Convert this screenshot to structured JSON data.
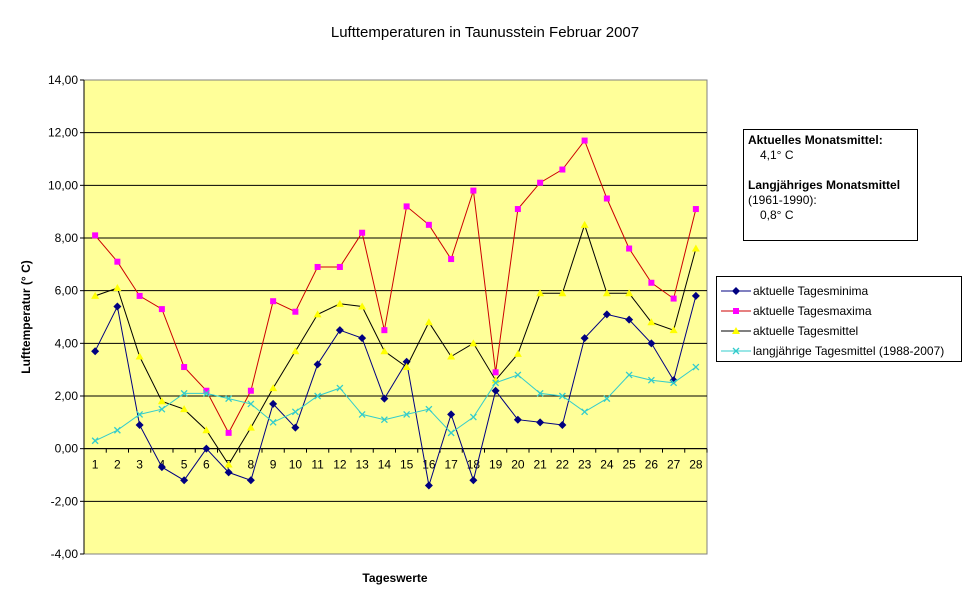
{
  "chart_data": {
    "type": "line",
    "title": "Lufttemperaturen in Taunusstein  Februar 2007",
    "xlabel": "Tageswerte",
    "ylabel": "Lufttemperatur (° C)",
    "ylim": [
      -4,
      14
    ],
    "ytick_step": 2,
    "ytick_labels": [
      "-4,00",
      "-2,00",
      "0,00",
      "2,00",
      "4,00",
      "6,00",
      "8,00",
      "10,00",
      "12,00",
      "14,00"
    ],
    "x": [
      1,
      2,
      3,
      4,
      5,
      6,
      7,
      8,
      9,
      10,
      11,
      12,
      13,
      14,
      15,
      16,
      17,
      18,
      19,
      20,
      21,
      22,
      23,
      24,
      25,
      26,
      27,
      28
    ],
    "x_tick_labels": [
      "1",
      "2",
      "3",
      "4",
      "5",
      "6",
      "7",
      "8",
      "9",
      "10",
      "11",
      "12",
      "13",
      "14",
      "15",
      "16",
      "17",
      "18",
      "19",
      "20",
      "21",
      "22",
      "23",
      "24",
      "25",
      "26",
      "27",
      "28"
    ],
    "grid": true,
    "plot_background": "#ffff99",
    "legend_placement": "right",
    "series": [
      {
        "name": "aktuelle Tagesminima",
        "color": "#000080",
        "marker": "diamond",
        "values": [
          3.7,
          5.4,
          0.9,
          -0.7,
          -1.2,
          0.0,
          -0.9,
          -1.2,
          1.7,
          0.8,
          3.2,
          4.5,
          4.2,
          1.9,
          3.3,
          -1.4,
          1.3,
          -1.2,
          2.2,
          1.1,
          1.0,
          0.9,
          4.2,
          5.1,
          4.9,
          4.0,
          2.6,
          5.8
        ]
      },
      {
        "name": "aktuelle Tagesmaxima",
        "color": "#cc0000",
        "marker_color": "#ff00ff",
        "marker": "square",
        "values": [
          8.1,
          7.1,
          5.8,
          5.3,
          3.1,
          2.2,
          0.6,
          2.2,
          5.6,
          5.2,
          6.9,
          6.9,
          8.2,
          4.5,
          9.2,
          8.5,
          7.2,
          9.8,
          2.9,
          9.1,
          10.1,
          10.6,
          11.7,
          9.5,
          7.6,
          6.3,
          5.7,
          9.1
        ]
      },
      {
        "name": "aktuelle Tagesmittel",
        "color": "#000000",
        "marker_color": "#ffff00",
        "marker": "triangle",
        "values": [
          5.8,
          6.1,
          3.5,
          1.8,
          1.5,
          0.7,
          -0.6,
          0.8,
          2.3,
          3.7,
          5.1,
          5.5,
          5.4,
          3.7,
          3.1,
          4.8,
          3.5,
          4.0,
          2.6,
          3.6,
          5.9,
          5.9,
          8.5,
          5.9,
          5.9,
          4.8,
          4.5,
          7.6
        ]
      },
      {
        "name": "langjährige Tagesmittel (1988-2007)",
        "color": "#33cccc",
        "marker": "x",
        "values": [
          0.3,
          0.7,
          1.3,
          1.5,
          2.1,
          2.1,
          1.9,
          1.7,
          1.0,
          1.4,
          2.0,
          2.3,
          1.3,
          1.1,
          1.3,
          1.5,
          0.6,
          1.2,
          2.5,
          2.8,
          2.1,
          2.0,
          1.4,
          1.9,
          2.8,
          2.6,
          2.5,
          3.1
        ]
      }
    ]
  },
  "info_box": {
    "current_label": "Aktuelles Monatsmittel:",
    "current_value": "4,1° C",
    "longterm_label": "Langjähriges Monatsmittel",
    "longterm_period": "(1961-1990):",
    "longterm_value": "0,8° C"
  }
}
